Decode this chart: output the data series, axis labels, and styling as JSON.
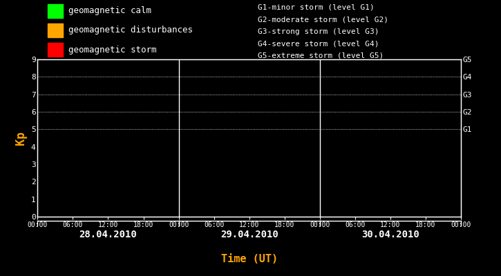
{
  "background_color": "#000000",
  "plot_bg_color": "#000000",
  "text_color": "#ffffff",
  "orange_color": "#ffa500",
  "grid_color": "#ffffff",
  "legend_items": [
    {
      "label": "geomagnetic calm",
      "color": "#00ff00"
    },
    {
      "label": "geomagnetic disturbances",
      "color": "#ffa500"
    },
    {
      "label": "geomagnetic storm",
      "color": "#ff0000"
    }
  ],
  "right_legend": [
    "G1-minor storm (level G1)",
    "G2-moderate storm (level G2)",
    "G3-strong storm (level G3)",
    "G4-severe storm (level G4)",
    "G5-extreme storm (level G5)"
  ],
  "dates": [
    "28.04.2010",
    "29.04.2010",
    "30.04.2010"
  ],
  "ylabel": "Kp",
  "xlabel": "Time (UT)",
  "ylim": [
    0,
    9
  ],
  "yticks": [
    0,
    1,
    2,
    3,
    4,
    5,
    6,
    7,
    8,
    9
  ],
  "g_levels": [
    {
      "label": "G1",
      "y": 5
    },
    {
      "label": "G2",
      "y": 6
    },
    {
      "label": "G3",
      "y": 7
    },
    {
      "label": "G4",
      "y": 8
    },
    {
      "label": "G5",
      "y": 9
    }
  ],
  "dotted_levels": [
    5,
    6,
    7,
    8,
    9
  ],
  "x_tick_hours": [
    0,
    6,
    12,
    18,
    24,
    30,
    36,
    42,
    48,
    54,
    60,
    66,
    72
  ],
  "x_tick_labels": [
    "00:00",
    "06:00",
    "12:00",
    "18:00",
    "00:00",
    "06:00",
    "12:00",
    "18:00",
    "00:00",
    "06:00",
    "12:00",
    "18:00",
    "00:00"
  ],
  "day_dividers": [
    24,
    48
  ]
}
